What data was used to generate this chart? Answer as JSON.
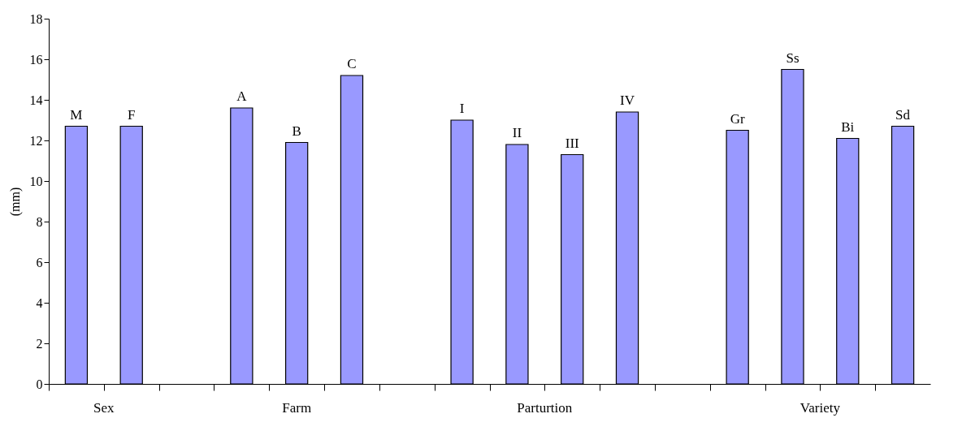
{
  "chart_data": {
    "type": "bar",
    "ylabel": "(mm)",
    "categories": [
      "M",
      "F",
      null,
      "A",
      "B",
      "C",
      null,
      "I",
      "II",
      "III",
      "IV",
      null,
      "Gr",
      "Ss",
      "Bi",
      "Sd"
    ],
    "values": [
      12.7,
      12.7,
      null,
      13.6,
      11.9,
      15.2,
      null,
      13.0,
      11.8,
      11.3,
      13.4,
      null,
      12.5,
      15.5,
      12.1,
      12.7
    ],
    "color": "#9999ff",
    "annotations": [
      "Sex",
      "Farm",
      "Parturtion",
      "Variety"
    ],
    "ylim": [
      0,
      18
    ],
    "yticks": [
      0,
      2,
      4,
      6,
      8,
      10,
      12,
      14,
      16,
      18
    ],
    "grid": false
  }
}
